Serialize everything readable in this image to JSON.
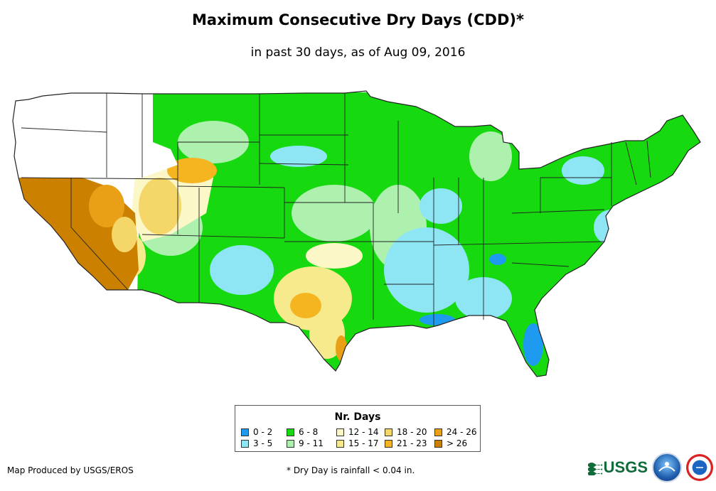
{
  "map": {
    "title": "Maximum Consecutive Dry Days (CDD)*",
    "subtitle": "in past 30 days, as of Aug 09, 2016",
    "region": "Contiguous United States"
  },
  "legend": {
    "title": "Nr. Days",
    "classes": [
      {
        "label": "0 - 2",
        "color": "#1e9bf0"
      },
      {
        "label": "3 - 5",
        "color": "#8ee6f5"
      },
      {
        "label": "6 - 8",
        "color": "#16d90f"
      },
      {
        "label": "9 - 11",
        "color": "#aef0ae"
      },
      {
        "label": "12 - 14",
        "color": "#fbf7c6"
      },
      {
        "label": "15 - 17",
        "color": "#f7ea8c"
      },
      {
        "label": "18 - 20",
        "color": "#f5d668"
      },
      {
        "label": "21 - 23",
        "color": "#f5b521"
      },
      {
        "label": "24 - 26",
        "color": "#eaa016"
      },
      {
        "label": "> 26",
        "color": "#cc8000"
      }
    ]
  },
  "footer": {
    "credit": "Map Produced by USGS/EROS",
    "note": "* Dry Day is rainfall < 0.04 in."
  },
  "logos": {
    "usgs": "USGS",
    "noaa": "noaa",
    "nws": "NWS"
  },
  "colors": {
    "nodata": "#ffffff",
    "border": "#222222"
  }
}
